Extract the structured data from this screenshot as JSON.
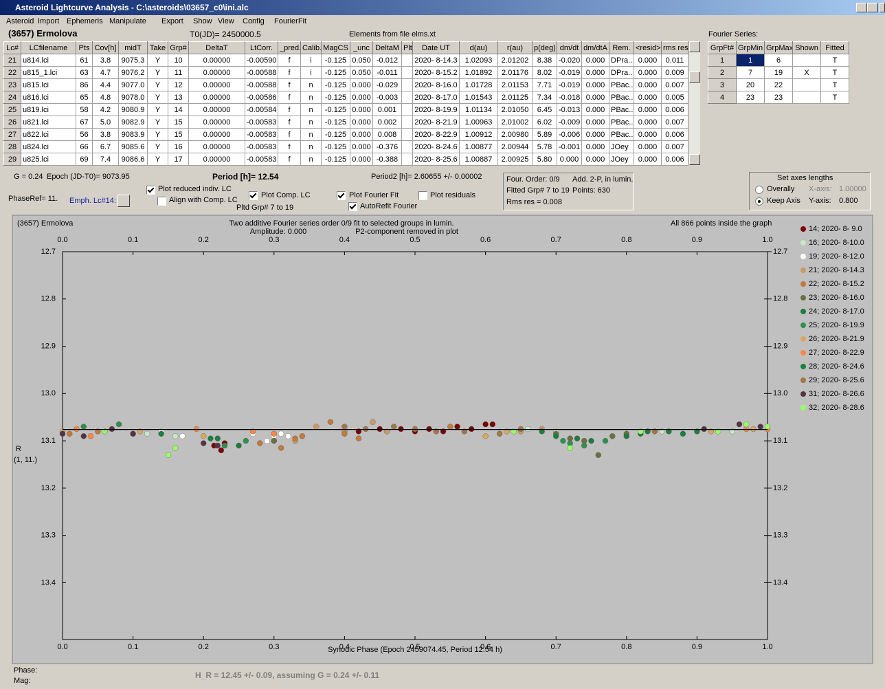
{
  "window": {
    "title": "Asteroid Lightcurve Analysis - C:\\asteroids\\03657_c0\\ini.alc"
  },
  "menu": [
    "Asteroid",
    "Import",
    "Ephemeris",
    "Manipulate",
    "Export",
    "Show",
    "View",
    "Config",
    "FourierFit"
  ],
  "header": {
    "object": "(3657) Ermolova",
    "t0": "T0(JD)= 2450000.5",
    "elements": "Elements from file elms.xt"
  },
  "table": {
    "columns": [
      "Lc#",
      "LCfilename",
      "Pts",
      "Cov[h]",
      "midT",
      "Take",
      "Grp#",
      "DeltaT",
      "LtCorr.",
      "_pred.",
      "Calib.",
      "MagCS",
      "_unc",
      "DeltaM",
      "Plt",
      "Date UT",
      "d(au)",
      "r(au)",
      "p(deg)",
      "dm/dt",
      "dm/dtA",
      "Rem.",
      "<resid>",
      "rms res"
    ],
    "rows": [
      [
        "21",
        "u814.lci",
        "61",
        "3.8",
        "9075.3",
        "Y",
        "10",
        "0.00000",
        "-0.00590",
        "f",
        "i",
        "-0.125",
        "0.050",
        "-0.012",
        "2020- 8-14.3",
        "1.02093",
        "2.01202",
        "8.38",
        "-0.020",
        "0.000",
        "DPra..",
        "0.000",
        "0.011"
      ],
      [
        "22",
        "u815_1.lci",
        "63",
        "4.7",
        "9076.2",
        "Y",
        "11",
        "0.00000",
        "-0.00588",
        "f",
        "i",
        "-0.125",
        "0.050",
        "-0.011",
        "2020- 8-15.2",
        "1.01892",
        "2.01176",
        "8.02",
        "-0.019",
        "0.000",
        "DPra..",
        "0.000",
        "0.009"
      ],
      [
        "23",
        "u815.lci",
        "86",
        "4.4",
        "9077.0",
        "Y",
        "12",
        "0.00000",
        "-0.00588",
        "f",
        "n",
        "-0.125",
        "0.000",
        "-0.029",
        "2020- 8-16.0",
        "1.01728",
        "2.01153",
        "7.71",
        "-0.019",
        "0.000",
        "PBac..",
        "0.000",
        "0.007"
      ],
      [
        "24",
        "u816.lci",
        "65",
        "4.8",
        "9078.0",
        "Y",
        "13",
        "0.00000",
        "-0.00586",
        "f",
        "n",
        "-0.125",
        "0.000",
        "-0.003",
        "2020- 8-17.0",
        "1.01543",
        "2.01125",
        "7.34",
        "-0.018",
        "0.000",
        "PBac..",
        "0.000",
        "0.005"
      ],
      [
        "25",
        "u819.lci",
        "58",
        "4.2",
        "9080.9",
        "Y",
        "14",
        "0.00000",
        "-0.00584",
        "f",
        "n",
        "-0.125",
        "0.000",
        "0.001",
        "2020- 8-19.9",
        "1.01134",
        "2.01050",
        "6.45",
        "-0.013",
        "0.000",
        "PBac..",
        "0.000",
        "0.006"
      ],
      [
        "26",
        "u821.lci",
        "67",
        "5.0",
        "9082.9",
        "Y",
        "15",
        "0.00000",
        "-0.00583",
        "f",
        "n",
        "-0.125",
        "0.000",
        "0.002",
        "2020- 8-21.9",
        "1.00963",
        "2.01002",
        "6.02",
        "-0.009",
        "0.000",
        "PBac..",
        "0.000",
        "0.007"
      ],
      [
        "27",
        "u822.lci",
        "56",
        "3.8",
        "9083.9",
        "Y",
        "15",
        "0.00000",
        "-0.00583",
        "f",
        "n",
        "-0.125",
        "0.000",
        "0.008",
        "2020- 8-22.9",
        "1.00912",
        "2.00980",
        "5.89",
        "-0.006",
        "0.000",
        "PBac..",
        "0.000",
        "0.006"
      ],
      [
        "28",
        "u824.lci",
        "66",
        "6.7",
        "9085.6",
        "Y",
        "16",
        "0.00000",
        "-0.00583",
        "f",
        "n",
        "-0.125",
        "0.000",
        "-0.376",
        "2020- 8-24.6",
        "1.00877",
        "2.00944",
        "5.78",
        "-0.001",
        "0.000",
        "JOey",
        "0.000",
        "0.007"
      ],
      [
        "29",
        "u825.lci",
        "69",
        "7.4",
        "9086.6",
        "Y",
        "17",
        "0.00000",
        "-0.00583",
        "f",
        "n",
        "-0.125",
        "0.000",
        "-0.388",
        "2020- 8-25.6",
        "1.00887",
        "2.00925",
        "5.80",
        "0.000",
        "0.000",
        "JOey",
        "0.000",
        "0.006"
      ]
    ]
  },
  "fourier": {
    "title": "Fourier Series:",
    "columns": [
      "GrpFt#",
      "GrpMin",
      "GrpMax",
      "Shown",
      "Fitted"
    ],
    "rows": [
      {
        "grp": "1",
        "min": "1",
        "max": "6",
        "fitted": "T"
      },
      {
        "grp": "2",
        "min": "7",
        "max": "19",
        "shown": "X",
        "fitted": "T"
      },
      {
        "grp": "3",
        "min": "20",
        "max": "22",
        "fitted": "T"
      },
      {
        "grp": "4",
        "min": "23",
        "max": "23",
        "fitted": "T"
      }
    ]
  },
  "controls": {
    "g": "G = 0.24",
    "epoch": "Epoch (JD-T0)= 9073.95",
    "period": "Period [h]= 12.54",
    "period2": "Period2 [h]= 2.60655 +/- 0.00002",
    "phaseref": "PhaseRef= 11.",
    "emph": "Emph. Lc#14:",
    "pltd": "Pltd Grp#  7  to   19",
    "checks": [
      {
        "label": "Plot reduced indiv. LC",
        "checked": true
      },
      {
        "label": "Align with Comp. LC",
        "checked": false
      },
      {
        "label": "Plot Comp. LC",
        "checked": true
      },
      {
        "label": "Plot Fourier Fit",
        "checked": true
      },
      {
        "label": "AutoRefit Fourier",
        "checked": true
      },
      {
        "label": "Plot residuals",
        "checked": false
      }
    ]
  },
  "info": {
    "order": "Four. Order:  0/9",
    "add": "Add. 2-P, in lumin.",
    "fitted": "Fitted Grp# 7 to 19",
    "points": "Points: 630",
    "rms": "Rms res     = 0.008"
  },
  "axes_box": {
    "title": "Set axes lengths",
    "options": [
      {
        "label": "Overally",
        "selected": false
      },
      {
        "label": "Keep Axis",
        "selected": true
      }
    ],
    "x_label": "X-axis:",
    "x_value": "1.00000",
    "y_label": "Y-axis:",
    "y_value": "0.800"
  },
  "chart_data": {
    "type": "scatter",
    "title": "(3657) Ermolova",
    "subtitle": "Two additive Fourier series order 0/9 fit to selected groups in lumin.",
    "amplitude": "Amplitude: 0.000",
    "note": "P2-component removed in plot",
    "points_note": "All 866 points inside the graph",
    "y_label": "R",
    "y_label2": "(1, 11.)",
    "x_label": "Synodic Phase (Epoch 2459074.45, Period 12.54 h)",
    "xlim": [
      0,
      1
    ],
    "ylim": [
      12.7,
      13.52
    ],
    "y_inverted": true,
    "xticks": [
      {
        "value": 0,
        "label": "0.0"
      },
      0.1,
      0.2,
      0.3,
      0.4,
      0.5,
      0.6,
      0.7,
      0.8,
      0.9,
      {
        "value": 1,
        "label": "1.0"
      }
    ],
    "yticks": [
      12.7,
      12.8,
      12.9,
      {
        "value": 13,
        "label": "13.0"
      },
      13.1,
      13.2,
      13.3,
      13.4
    ],
    "fit": {
      "color": "#000000",
      "x": [
        0,
        1
      ],
      "y": [
        13.076,
        13.076
      ]
    },
    "series": [
      {
        "name": "14; 2020- 8- 9.0",
        "color": "#7a0000",
        "x": [
          0.215,
          0.225,
          0.23,
          0.42,
          0.45,
          0.48,
          0.5,
          0.52,
          0.54,
          0.56,
          0.58,
          0.6,
          0.61
        ],
        "y": [
          13.11,
          13.12,
          13.105,
          13.08,
          13.075,
          13.075,
          13.08,
          13.075,
          13.08,
          13.07,
          13.075,
          13.065,
          13.065
        ]
      },
      {
        "name": "16; 2020- 8-10.0",
        "color": "#c8e6c8",
        "x": [
          0.12,
          0.16,
          0.3,
          0.66,
          0.7,
          0.85,
          0.95
        ],
        "y": [
          13.085,
          13.09,
          13.085,
          13.075,
          13.08,
          13.08,
          13.08
        ]
      },
      {
        "name": "19; 2020- 8-12.0",
        "color": "#ffffff",
        "x": [
          0.1,
          0.14,
          0.17,
          0.27,
          0.29,
          0.3,
          0.31,
          0.32
        ],
        "y": [
          13.085,
          13.08,
          13.09,
          13.085,
          13.1,
          13.09,
          13.085,
          13.09
        ]
      },
      {
        "name": "21; 2020- 8-14.3",
        "color": "#cc9966",
        "x": [
          0.3,
          0.33,
          0.36,
          0.4,
          0.44,
          0.46,
          0.65,
          0.68
        ],
        "y": [
          13.1,
          13.1,
          13.07,
          13.08,
          13.06,
          13.08,
          13.08,
          13.075
        ]
      },
      {
        "name": "22; 2020- 8-15.2",
        "color": "#c07a3c",
        "x": [
          0.01,
          0.05,
          0.28,
          0.31,
          0.33,
          0.34,
          0.38,
          0.4,
          0.42,
          0.55
        ],
        "y": [
          13.085,
          13.08,
          13.105,
          13.115,
          13.095,
          13.09,
          13.06,
          13.085,
          13.095,
          13.07
        ]
      },
      {
        "name": "23; 2020- 8-16.0",
        "color": "#6e6e40",
        "x": [
          0.3,
          0.7,
          0.72,
          0.74,
          0.76,
          0.78,
          0.8
        ],
        "y": [
          13.1,
          13.085,
          13.095,
          13.1,
          13.13,
          13.09,
          13.085
        ]
      },
      {
        "name": "24; 2020- 8-17.0",
        "color": "#1f7a3f",
        "x": [
          0.22,
          0.25,
          0.73,
          0.75,
          0.8,
          0.83
        ],
        "y": [
          13.095,
          13.11,
          13.095,
          13.1,
          13.09,
          13.08
        ]
      },
      {
        "name": "25; 2020- 8-19.9",
        "color": "#2f8f4f",
        "x": [
          0.03,
          0.08,
          0.23,
          0.26,
          0.71,
          0.72,
          0.74,
          0.77
        ],
        "y": [
          13.07,
          13.065,
          13.11,
          13.1,
          13.1,
          13.105,
          13.11,
          13.1
        ]
      },
      {
        "name": "26; 2020- 8-21.9",
        "color": "#d8a860",
        "x": [
          0,
          0.06,
          0.11,
          0.2,
          0.6,
          0.63,
          0.92,
          0.98
        ],
        "y": [
          13.08,
          13.08,
          13.08,
          13.09,
          13.09,
          13.08,
          13.08,
          13.075
        ]
      },
      {
        "name": "27; 2020- 8-22.9",
        "color": "#ff8844",
        "x": [
          0.02,
          0.04,
          0.19,
          0.27,
          0.3,
          0.97,
          1
        ],
        "y": [
          13.075,
          13.09,
          13.075,
          13.08,
          13.085,
          13.075,
          13.075
        ]
      },
      {
        "name": "28; 2020- 8-24.6",
        "color": "#188040",
        "x": [
          0.14,
          0.21,
          0.68,
          0.7,
          0.82,
          0.86,
          0.88,
          0.9
        ],
        "y": [
          13.085,
          13.095,
          13.08,
          13.09,
          13.085,
          13.08,
          13.085,
          13.08
        ]
      },
      {
        "name": "29; 2020- 8-25.6",
        "color": "#a07844",
        "x": [
          0.4,
          0.43,
          0.47,
          0.5,
          0.53,
          0.57,
          0.62,
          0.65,
          0.84
        ],
        "y": [
          13.07,
          13.075,
          13.07,
          13.075,
          13.08,
          13.08,
          13.085,
          13.075,
          13.08
        ]
      },
      {
        "name": "31; 2020- 8-26.6",
        "color": "#553344",
        "x": [
          0,
          0.03,
          0.07,
          0.1,
          0.2,
          0.22,
          0.91,
          0.96,
          0.99
        ],
        "y": [
          13.085,
          13.09,
          13.075,
          13.085,
          13.105,
          13.11,
          13.075,
          13.065,
          13.07
        ]
      },
      {
        "name": "32; 2020- 8-28.6",
        "color": "#99ff66",
        "x": [
          0.06,
          0.15,
          0.16,
          0.64,
          0.72,
          0.82,
          0.93,
          0.97,
          1
        ],
        "y": [
          13.08,
          13.13,
          13.115,
          13.08,
          13.115,
          13.08,
          13.08,
          13.065,
          13.07
        ]
      }
    ]
  },
  "footer": {
    "phase": "Phase:",
    "mag": "Mag:",
    "hr": "H_R = 12.45 +/- 0.09, assuming G = 0.24 +/- 0.11"
  }
}
